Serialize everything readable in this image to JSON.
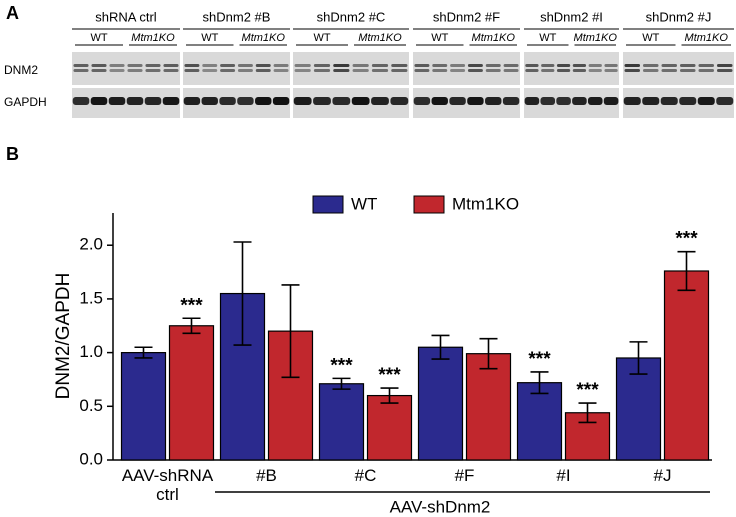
{
  "blot": {
    "panel_label": "A",
    "lanes": [
      "shRNA ctrl",
      "shDnm2 #B",
      "shDnm2 #C",
      "shDnm2 #F",
      "shDnm2 #I",
      "shDnm2 #J"
    ],
    "genotypes": [
      "WT",
      "Mtm1KO"
    ],
    "rows": [
      "DNM2",
      "GAPDH"
    ]
  },
  "chart_data": {
    "type": "bar",
    "panel_label": "B",
    "categories": [
      "AAV-shRNA ctrl",
      "#B",
      "#C",
      "#F",
      "#I",
      "#J"
    ],
    "group_label": "AAV-shDnm2",
    "ylabel": "DNM2/GAPDH",
    "ylim": [
      0,
      2.3
    ],
    "yticks": [
      {
        "value": 0,
        "label": "0.0"
      },
      {
        "value": 0.5,
        "label": "0.5"
      },
      {
        "value": 1,
        "label": "1.0"
      },
      {
        "value": 1.5,
        "label": "1.5"
      },
      {
        "value": 2,
        "label": "2.0"
      }
    ],
    "series": [
      {
        "name": "WT",
        "color": "#2b2a8e",
        "values": [
          1.0,
          1.55,
          0.71,
          1.05,
          0.72,
          0.95
        ],
        "errors": [
          0.05,
          0.48,
          0.05,
          0.11,
          0.1,
          0.15
        ],
        "significance": [
          null,
          null,
          "***",
          null,
          "***",
          null
        ]
      },
      {
        "name": "Mtm1KO",
        "color": "#c1272d",
        "values": [
          1.25,
          1.2,
          0.6,
          0.99,
          0.44,
          1.76
        ],
        "errors": [
          0.07,
          0.43,
          0.07,
          0.14,
          0.09,
          0.18
        ],
        "significance": [
          "***",
          null,
          "***",
          null,
          "***",
          "***"
        ]
      }
    ]
  }
}
